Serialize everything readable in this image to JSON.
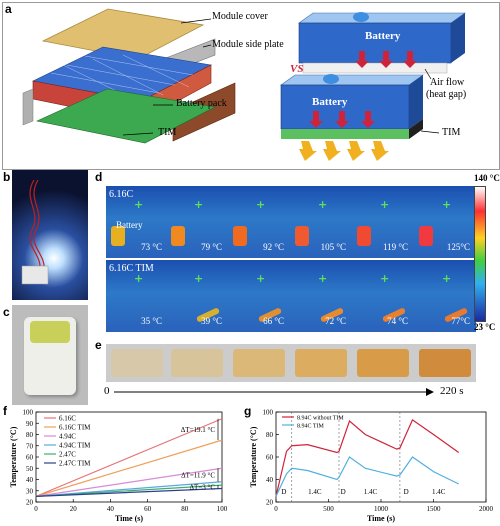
{
  "panels": {
    "a": "a",
    "b": "b",
    "c": "c",
    "d": "d",
    "e": "e",
    "f": "f",
    "g": "g"
  },
  "panel_a": {
    "labels": {
      "module_cover": "Module cover",
      "module_side_plate": "Module side plate",
      "battery_pack": "Battery pack",
      "tim_left": "TIM",
      "battery_top": "Battery",
      "vs": "VS",
      "air_flow": "Air flow",
      "heat_gap": "(heat gap)",
      "battery_bottom": "Battery",
      "tim_right": "TIM"
    }
  },
  "panel_d": {
    "scale_max": "140 °C",
    "scale_min": "23 °C",
    "row1_title": "6.16C",
    "row1_battery_label": "Battery",
    "row1_temps": [
      "73 °C",
      "79 °C",
      "92 °C",
      "105 °C",
      "119 °C",
      "125°C"
    ],
    "row2_title": "6.16C TIM",
    "row2_temps": [
      "35 °C",
      "39 °C",
      "66 °C",
      "72 °C",
      "74 °C",
      "77°C"
    ]
  },
  "panel_e": {
    "time_start": "0",
    "time_end": "220 s"
  },
  "chart_data": [
    {
      "type": "line",
      "panel": "f",
      "xlabel": "Time (s)",
      "ylabel": "Temperature (°C)",
      "xlim": [
        0,
        100
      ],
      "ylim": [
        20,
        100
      ],
      "xticks": [
        0,
        20,
        40,
        60,
        80,
        100
      ],
      "yticks": [
        20,
        30,
        40,
        50,
        60,
        70,
        80,
        90,
        100
      ],
      "series": [
        {
          "name": "6.16C",
          "color": "#e8737a",
          "x": [
            0,
            100
          ],
          "y": [
            25,
            94
          ]
        },
        {
          "name": "6.16C TIM",
          "color": "#f0a05a",
          "x": [
            0,
            100
          ],
          "y": [
            25,
            75
          ]
        },
        {
          "name": "4.94C",
          "color": "#d88ad8",
          "x": [
            0,
            100
          ],
          "y": [
            25,
            50
          ]
        },
        {
          "name": "4.94C TIM",
          "color": "#5aa8e0",
          "x": [
            0,
            100
          ],
          "y": [
            25,
            38
          ]
        },
        {
          "name": "2.47C",
          "color": "#3fae6a",
          "x": [
            0,
            100
          ],
          "y": [
            25,
            35
          ]
        },
        {
          "name": "2.47C TIM",
          "color": "#2e3f8f",
          "x": [
            0,
            100
          ],
          "y": [
            25,
            32
          ]
        }
      ],
      "annotations": [
        "ΔT=19.1 °C",
        "ΔT=11.9 °C",
        "ΔT=3 °C"
      ]
    },
    {
      "type": "line",
      "panel": "g",
      "xlabel": "Time (s)",
      "ylabel": "Temperature (°C)",
      "xlim": [
        0,
        2000
      ],
      "ylim": [
        20,
        100
      ],
      "xticks": [
        0,
        500,
        1000,
        1500,
        2000
      ],
      "yticks": [
        20,
        40,
        60,
        80,
        100
      ],
      "series": [
        {
          "name": "8.94C without TIM",
          "color": "#d0233a",
          "x": [
            0,
            100,
            150,
            300,
            580,
            600,
            700,
            850,
            1150,
            1180,
            1300,
            1500,
            1740
          ],
          "y": [
            25,
            65,
            70,
            71,
            64,
            65,
            92,
            80,
            67,
            68,
            93,
            80,
            64
          ]
        },
        {
          "name": "8.94C TIM",
          "color": "#4fb0e0",
          "x": [
            0,
            100,
            150,
            300,
            580,
            600,
            700,
            850,
            1150,
            1180,
            1300,
            1500,
            1740
          ],
          "y": [
            25,
            45,
            50,
            48,
            40,
            42,
            60,
            50,
            43,
            44,
            60,
            47,
            36
          ]
        }
      ],
      "phase_labels": [
        "D",
        "1.4C",
        "D",
        "1.4C",
        "D",
        "1.4C"
      ]
    }
  ]
}
